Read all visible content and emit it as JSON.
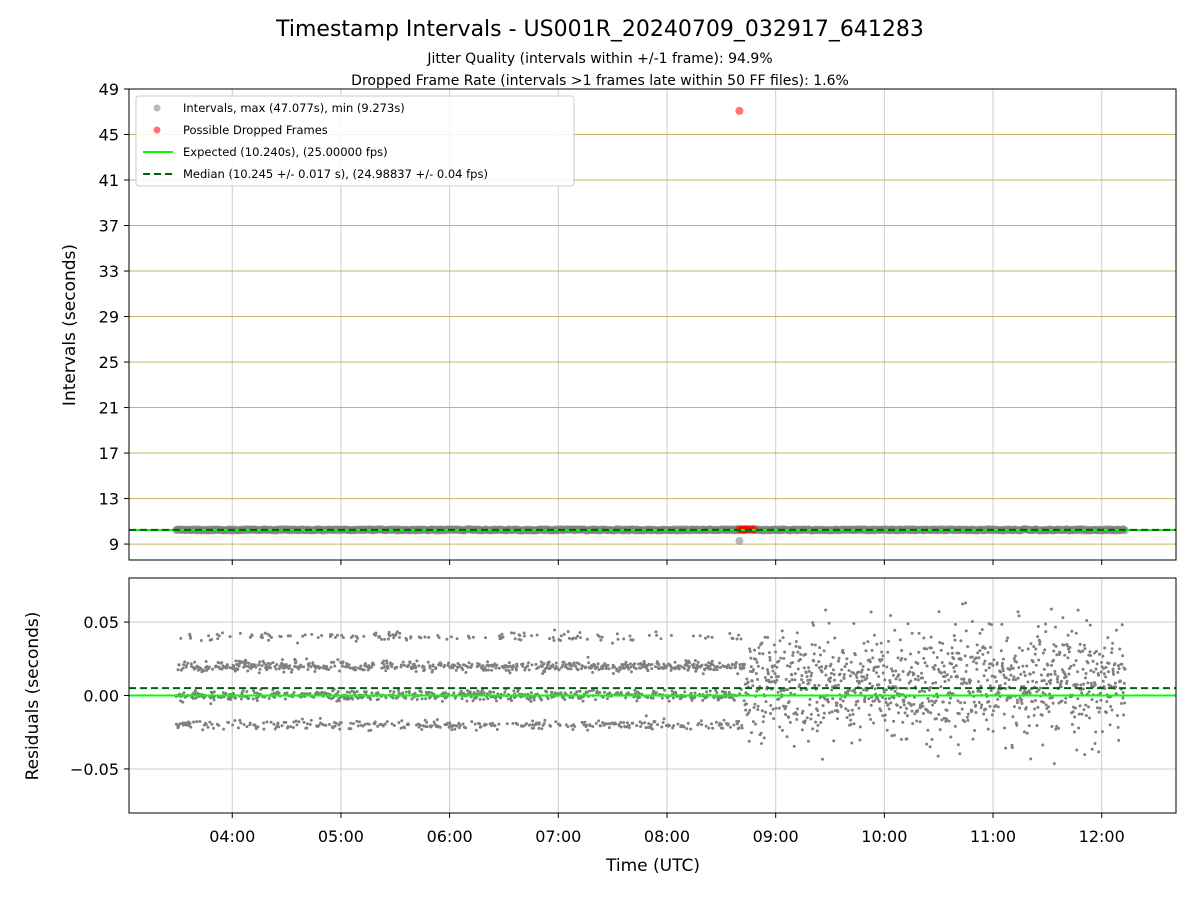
{
  "title": "Timestamp Intervals - US001R_20240709_032917_641283",
  "subtitles": [
    "Jitter Quality (intervals within +/-1 frame): 94.9%",
    "Dropped Frame Rate (intervals >1 frames late within 50 FF files): 1.6%"
  ],
  "colors": {
    "intervals": "#808080",
    "dropped": "#ff0000",
    "expected": "#00ff00",
    "median": "#006400",
    "hgrid": "#c8b464",
    "vgrid": "#cccccc"
  },
  "chart_data": [
    {
      "type": "scatter",
      "panel": "top",
      "ylabel": "Intervals (seconds)",
      "xlabel": "",
      "xlim": [
        "03:03",
        "12:41"
      ],
      "ylim": [
        7.6,
        49
      ],
      "yticks": [
        9,
        13,
        17,
        21,
        25,
        29,
        33,
        37,
        41,
        45,
        49
      ],
      "xticks": [
        "04:00",
        "05:00",
        "06:00",
        "07:00",
        "08:00",
        "09:00",
        "10:00",
        "11:00",
        "12:00"
      ],
      "grid": true,
      "legend_position": "top-left",
      "series": [
        {
          "name": "Intervals, max (47.077s), min (9.273s)",
          "kind": "scatter",
          "x_range": [
            "03:29",
            "12:13"
          ],
          "y_typical": 10.245,
          "outliers": [
            {
              "x": "08:40",
              "y": 9.273
            }
          ]
        },
        {
          "name": "Possible Dropped Frames",
          "kind": "scatter",
          "points": [
            {
              "x": "08:40",
              "y": 47.077
            },
            {
              "x": "08:40",
              "y": 10.3
            },
            {
              "x": "08:41",
              "y": 10.3
            },
            {
              "x": "08:42",
              "y": 10.3
            },
            {
              "x": "08:43",
              "y": 10.3
            },
            {
              "x": "08:44",
              "y": 10.3
            },
            {
              "x": "08:45",
              "y": 10.3
            },
            {
              "x": "08:47",
              "y": 10.3
            },
            {
              "x": "08:48",
              "y": 10.3
            }
          ]
        },
        {
          "name": "Expected (10.240s), (25.00000 fps)",
          "kind": "hline",
          "y": 10.24
        },
        {
          "name": "Median (10.245 +/- 0.017 s), (24.98837 +/- 0.04 fps)",
          "kind": "hline-dashed",
          "y": 10.245
        }
      ]
    },
    {
      "type": "scatter",
      "panel": "bottom",
      "ylabel": "Residuals (seconds)",
      "xlabel": "Time (UTC)",
      "xlim": [
        "03:03",
        "12:41"
      ],
      "ylim": [
        -0.08,
        0.08
      ],
      "yticks": [
        0.05,
        0.0,
        -0.05
      ],
      "ytick_labels": [
        "0.05",
        "0.00",
        "−0.05"
      ],
      "xticks": [
        "04:00",
        "05:00",
        "06:00",
        "07:00",
        "08:00",
        "09:00",
        "10:00",
        "11:00",
        "12:00"
      ],
      "grid": true,
      "series": [
        {
          "name": "residuals",
          "kind": "scatter",
          "x_range": [
            "03:29",
            "12:13"
          ],
          "levels_before_0843": [
            -0.02,
            0.0,
            0.02,
            0.04
          ],
          "spread_after_0843": [
            -0.055,
            0.063
          ]
        },
        {
          "name": "expected",
          "kind": "hline",
          "y": 0.0
        },
        {
          "name": "median",
          "kind": "hline-dashed",
          "y": 0.005
        }
      ]
    }
  ]
}
